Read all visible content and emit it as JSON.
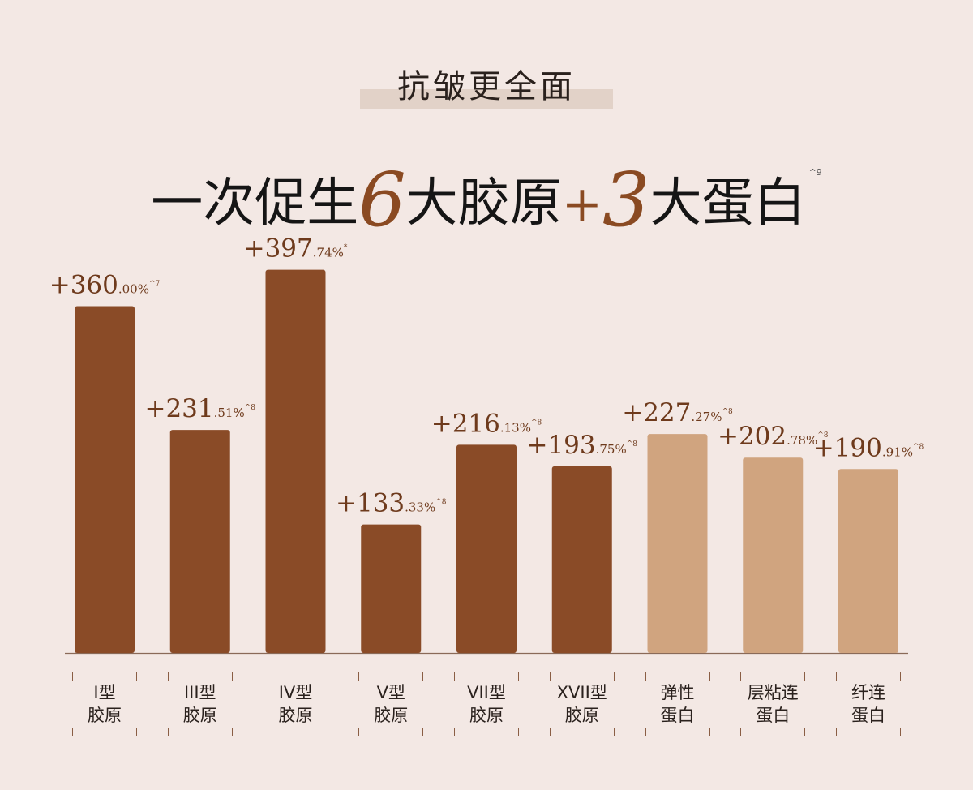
{
  "header": {
    "tag": "抗皱更全面",
    "headline_pre": "一次促生",
    "headline_num1": "6",
    "headline_mid": "大胶原",
    "headline_plus": "+",
    "headline_num2": "3",
    "headline_post": "大蛋白",
    "headline_note": "^9"
  },
  "colors": {
    "collagen": "#8a4b27",
    "protein": "#d0a47f",
    "label": "#6e3a1c",
    "baseline": "#8a6a58"
  },
  "chart_data": {
    "type": "bar",
    "ylim": [
      0,
      420
    ],
    "categories": [
      {
        "line1": "I型",
        "line2": "胶原",
        "group": "collagen"
      },
      {
        "line1": "III型",
        "line2": "胶原",
        "group": "collagen"
      },
      {
        "line1": "IV型",
        "line2": "胶原",
        "group": "collagen"
      },
      {
        "line1": "V型",
        "line2": "胶原",
        "group": "collagen"
      },
      {
        "line1": "VII型",
        "line2": "胶原",
        "group": "collagen"
      },
      {
        "line1": "XVII型",
        "line2": "胶原",
        "group": "collagen"
      },
      {
        "line1": "弹性",
        "line2": "蛋白",
        "group": "protein"
      },
      {
        "line1": "层粘连",
        "line2": "蛋白",
        "group": "protein"
      },
      {
        "line1": "纤连",
        "line2": "蛋白",
        "group": "protein"
      }
    ],
    "values": [
      360.0,
      231.51,
      397.74,
      133.33,
      216.13,
      193.75,
      227.27,
      202.78,
      190.91
    ],
    "data_labels": [
      {
        "main": "+360",
        "dec": ".00%",
        "note": "^7"
      },
      {
        "main": "+231",
        "dec": ".51%",
        "note": "^8"
      },
      {
        "main": "+397",
        "dec": ".74%",
        "note": "*"
      },
      {
        "main": "+133",
        "dec": ".33%",
        "note": "^8"
      },
      {
        "main": "+216",
        "dec": ".13%",
        "note": "^8"
      },
      {
        "main": "+193",
        "dec": ".75%",
        "note": "^8"
      },
      {
        "main": "+227",
        "dec": ".27%",
        "note": "^8"
      },
      {
        "main": "+202",
        "dec": ".78%",
        "note": "^8"
      },
      {
        "main": "+190",
        "dec": ".91%",
        "note": "^8"
      }
    ]
  }
}
